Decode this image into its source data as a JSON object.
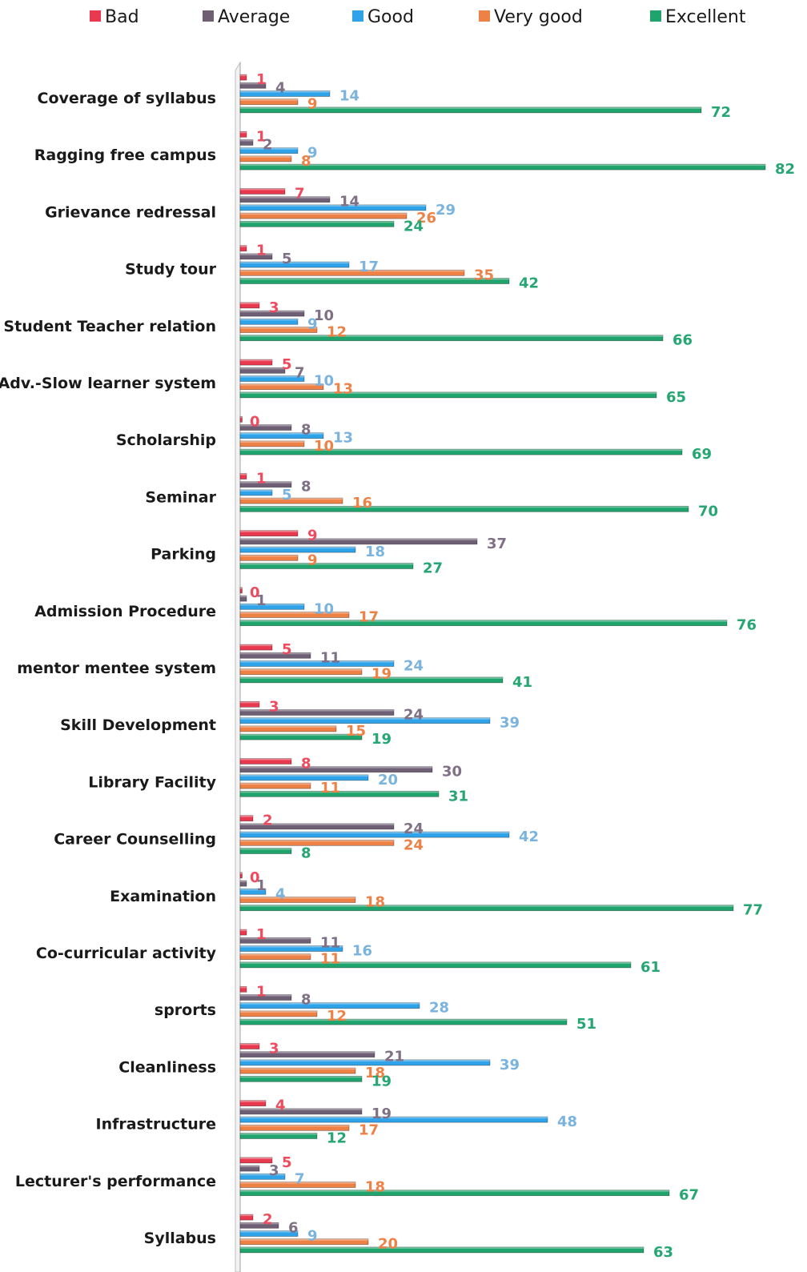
{
  "chart_data": {
    "type": "bar",
    "orientation": "horizontal",
    "grid": false,
    "legend_position": "top",
    "xlim": [
      0,
      85
    ],
    "categories": [
      "Coverage of syllabus",
      "Ragging free campus",
      "Grievance redressal",
      "Study tour",
      "Student Teacher relation",
      "Adv.-Slow learner system",
      "Scholarship",
      "Seminar",
      "Parking",
      "Admission Procedure",
      "mentor mentee system",
      "Skill Development",
      "Library Facility",
      "Career Counselling",
      "Examination",
      "Co-curricular activity",
      "sprorts",
      "Cleanliness",
      "Infrastructure",
      "Lecturer's performance",
      "Syllabus"
    ],
    "series": [
      {
        "name": "Bad",
        "color": "#e8394f",
        "label_color": "#ef4a5e",
        "values": [
          1,
          1,
          7,
          1,
          3,
          5,
          0,
          1,
          9,
          0,
          5,
          3,
          8,
          2,
          0,
          1,
          1,
          3,
          4,
          5,
          2
        ]
      },
      {
        "name": "Average",
        "color": "#6e5f75",
        "label_color": "#7f7085",
        "values": [
          4,
          2,
          14,
          5,
          10,
          7,
          8,
          8,
          37,
          1,
          11,
          24,
          30,
          24,
          1,
          11,
          8,
          21,
          19,
          3,
          6
        ]
      },
      {
        "name": "Good",
        "color": "#2ea3ea",
        "label_color": "#7ab3de",
        "values": [
          14,
          9,
          29,
          17,
          9,
          10,
          13,
          5,
          18,
          10,
          24,
          39,
          20,
          42,
          4,
          16,
          28,
          39,
          48,
          7,
          9
        ]
      },
      {
        "name": "Very good",
        "color": "#ee8145",
        "label_color": "#ee8145",
        "values": [
          9,
          8,
          26,
          35,
          12,
          13,
          10,
          16,
          9,
          17,
          19,
          15,
          11,
          24,
          18,
          11,
          12,
          18,
          17,
          18,
          20
        ]
      },
      {
        "name": "Excellent",
        "color": "#1fa46d",
        "label_color": "#25a673",
        "values": [
          72,
          82,
          24,
          42,
          66,
          65,
          69,
          70,
          27,
          76,
          41,
          19,
          31,
          8,
          77,
          61,
          51,
          19,
          12,
          67,
          63
        ]
      }
    ]
  }
}
